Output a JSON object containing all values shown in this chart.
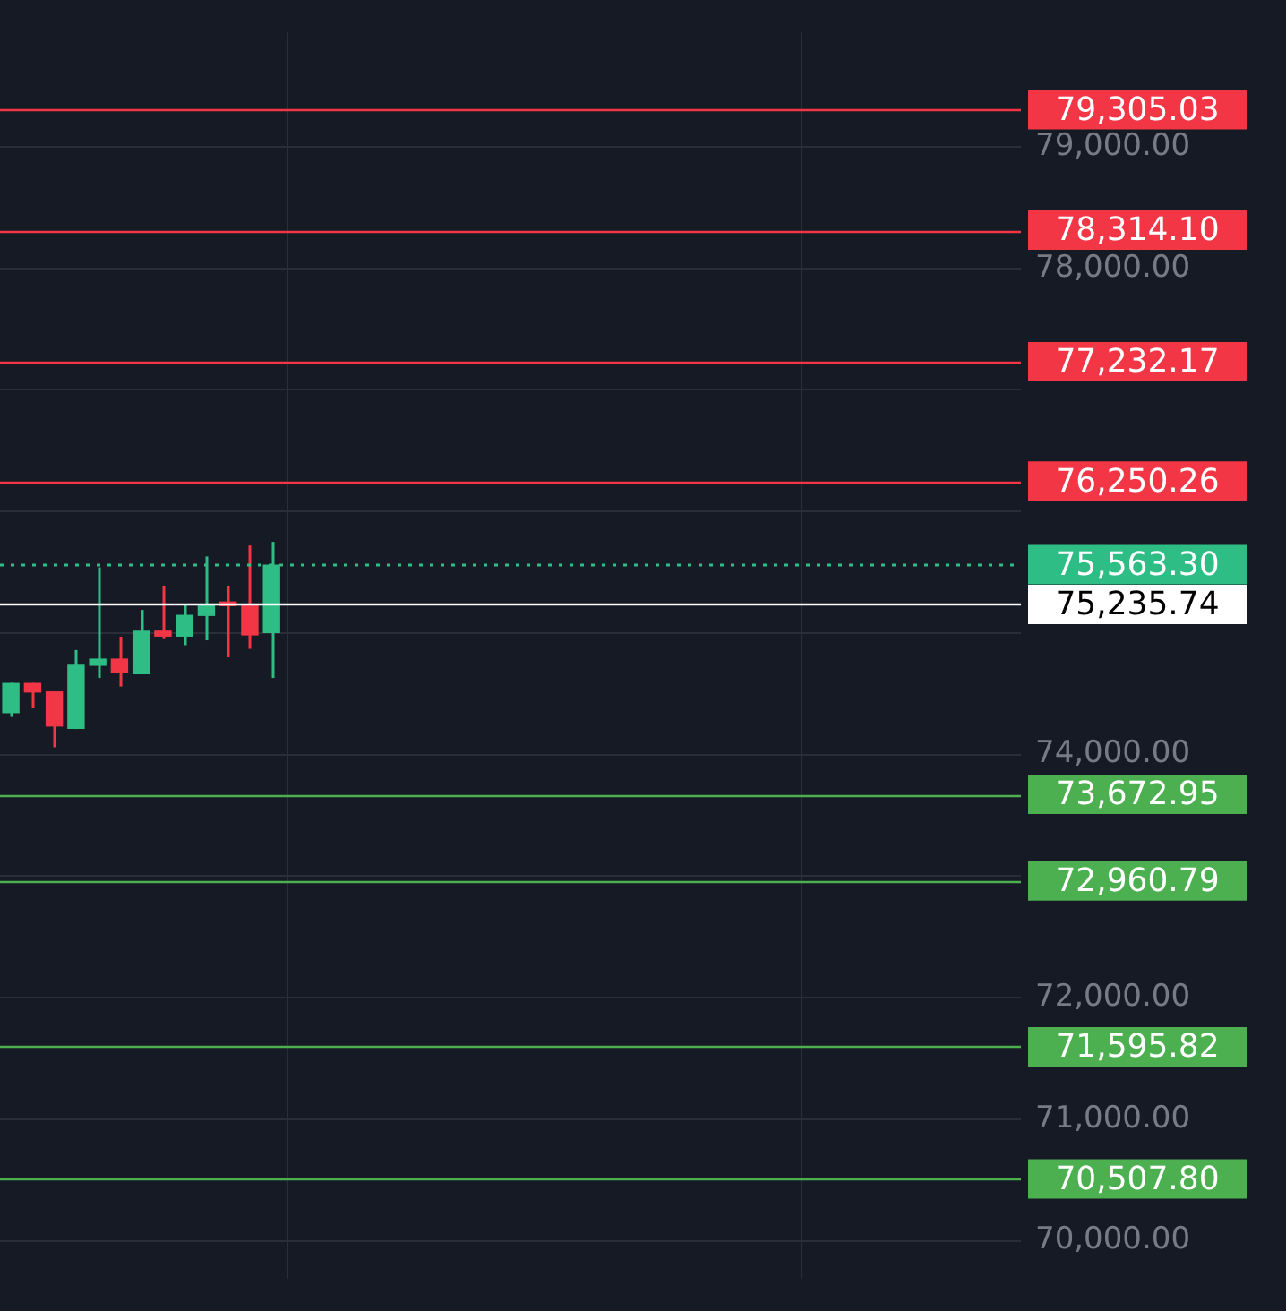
{
  "chart_data": {
    "type": "candlestick",
    "categories": [
      null,
      null,
      null,
      null,
      null,
      null,
      null,
      null,
      null,
      null,
      null,
      null,
      null,
      null,
      null,
      null,
      null,
      null,
      null,
      null,
      null,
      null,
      null,
      null,
      null,
      null,
      null,
      null,
      null,
      null,
      null,
      null,
      null,
      null,
      null,
      null,
      null,
      null,
      null,
      null,
      null,
      null,
      null,
      null,
      null,
      null,
      null
    ],
    "ohlc": [
      [
        74340,
        74590,
        74310,
        74590
      ],
      [
        74590,
        74590,
        74380,
        74510
      ],
      [
        74520,
        74520,
        74060,
        74230
      ],
      [
        74210,
        74860,
        74210,
        74740
      ],
      [
        74730,
        75540,
        74630,
        74790
      ],
      [
        74790,
        74970,
        74560,
        74670
      ],
      [
        74660,
        75190,
        74660,
        75020
      ],
      [
        75020,
        75390,
        74950,
        74970
      ],
      [
        74970,
        75230,
        74900,
        75150
      ],
      [
        75140,
        75630,
        74940,
        75230
      ],
      [
        75260,
        75390,
        74800,
        75220
      ],
      [
        75230,
        75720,
        74870,
        74980
      ],
      [
        75000,
        75750,
        74630,
        75563.3
      ],
      null,
      null,
      null,
      null,
      null,
      null,
      null,
      null,
      null,
      null,
      null,
      null,
      null,
      null,
      null,
      null,
      null,
      null,
      null,
      null,
      null,
      null,
      null,
      null,
      null,
      null,
      null,
      null,
      null,
      null,
      null,
      null,
      null,
      null
    ],
    "colors": [
      "#2ebd85",
      "#f23645",
      "#f23645",
      "#2ebd85",
      "#2ebd85",
      "#f23645",
      "#2ebd85",
      "#f23645",
      "#2ebd85",
      "#2ebd85",
      "#f23645",
      "#f23645",
      "#2ebd85",
      null,
      null,
      null,
      null,
      null,
      null,
      null,
      null,
      null,
      null,
      null,
      null,
      null,
      null,
      null,
      null,
      null,
      null,
      null,
      null,
      null,
      null,
      null,
      null,
      null,
      null,
      null,
      null,
      null,
      null,
      null,
      null,
      null,
      null
    ],
    "ylim": [
      69690,
      79940
    ],
    "yticks": [
      {
        "value": 70000,
        "label": "70,000.00"
      },
      {
        "value": 71000,
        "label": "71,000.00"
      },
      {
        "value": 72000,
        "label": "72,000.00"
      },
      {
        "value": 73000,
        "label": null
      },
      {
        "value": 74000,
        "label": "74,000.00"
      },
      {
        "value": 75000,
        "label": null
      },
      {
        "value": 76000,
        "label": null
      },
      {
        "value": 77000,
        "label": null
      },
      {
        "value": 78000,
        "label": "78,000.00"
      },
      {
        "value": 79000,
        "label": "79,000.00"
      }
    ],
    "ref_lines": [
      {
        "axis": "y",
        "value": 79305.03,
        "label": "79,305.03",
        "color": "#f23645",
        "line_style": "solid"
      },
      {
        "axis": "y",
        "value": 78314.1,
        "label": "78,314.10",
        "color": "#f23645",
        "line_style": "solid"
      },
      {
        "axis": "y",
        "value": 77232.17,
        "label": "77,232.17",
        "color": "#f23645",
        "line_style": "solid"
      },
      {
        "axis": "y",
        "value": 76250.26,
        "label": "76,250.26",
        "color": "#f23645",
        "line_style": "solid"
      },
      {
        "axis": "y",
        "value": 75563.3,
        "label": "75,563.30",
        "color": "#2ebd85",
        "line_style": "dotted"
      },
      {
        "axis": "y",
        "value": 75235.74,
        "label": "75,235.74",
        "color": "#ffffff",
        "line_style": "solid"
      },
      {
        "axis": "y",
        "value": 73672.95,
        "label": "73,672.95",
        "color": "#4caf50",
        "line_style": "solid"
      },
      {
        "axis": "y",
        "value": 72960.79,
        "label": "72,960.79",
        "color": "#4caf50",
        "line_style": "solid"
      },
      {
        "axis": "y",
        "value": 71595.82,
        "label": "71,595.82",
        "color": "#4caf50",
        "line_style": "solid"
      },
      {
        "axis": "y",
        "value": 70507.8,
        "label": "70,507.80",
        "color": "#4caf50",
        "line_style": "solid"
      }
    ],
    "grid": "y",
    "tick_labels": "y",
    "legend": false
  }
}
